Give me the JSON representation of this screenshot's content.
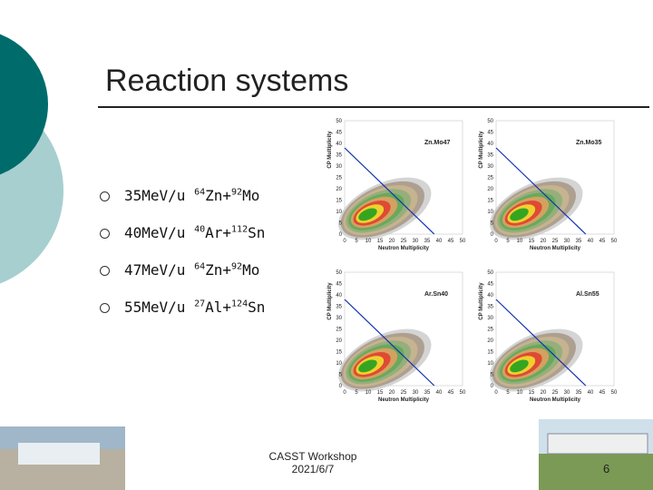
{
  "header": {
    "title": "Reaction systems"
  },
  "bullets": [
    {
      "energy": "35MeV/u",
      "projectile_mass": "64",
      "projectile": "Zn+",
      "target_mass": "92",
      "target": "Mo"
    },
    {
      "energy": "40MeV/u",
      "projectile_mass": "40",
      "projectile": "Ar+",
      "target_mass": "112",
      "target": "Sn"
    },
    {
      "energy": "47MeV/u",
      "projectile_mass": "64",
      "projectile": "Zn+",
      "target_mass": "92",
      "target": "Mo"
    },
    {
      "energy": "55MeV/u",
      "projectile_mass": "27",
      "projectile": "Al+",
      "target_mass": "124",
      "target": "Sn"
    }
  ],
  "plots": {
    "y_label": "CP Multiplicity",
    "x_label": "Neutron Multiplicity",
    "ticks": [
      0,
      5,
      10,
      15,
      20,
      25,
      30,
      35,
      40,
      45,
      50
    ],
    "panels": [
      {
        "label": "Zn.Mo47"
      },
      {
        "label": "Zn.Mo35"
      },
      {
        "label": "Ar.Sn40"
      },
      {
        "label": "Al.Sn55"
      }
    ]
  },
  "footer": {
    "event": "CASST Workshop",
    "date": "2021/6/7",
    "page": "6"
  }
}
